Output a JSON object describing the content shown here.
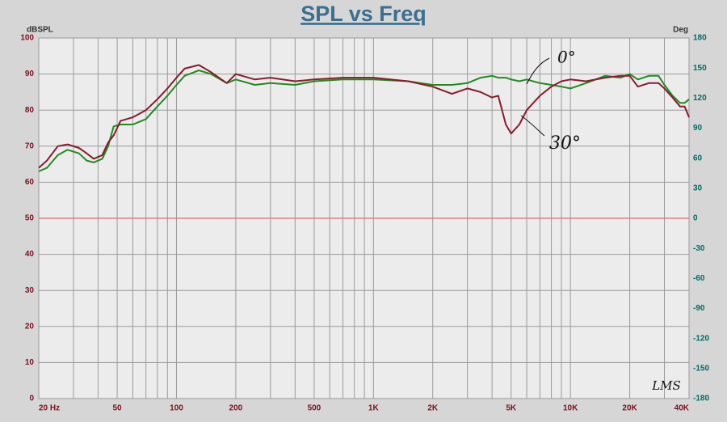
{
  "chart_data": {
    "type": "line",
    "title": "SPL vs Freq",
    "y_label": "dBSPL",
    "y2_label": "Deg",
    "log_x": true,
    "grid": true,
    "x": [
      20,
      22,
      25,
      28,
      32,
      35,
      38,
      42,
      45,
      48,
      52,
      60,
      70,
      80,
      90,
      100,
      110,
      130,
      150,
      180,
      200,
      250,
      300,
      400,
      500,
      700,
      1000,
      1500,
      2000,
      2500,
      3000,
      3500,
      4000,
      4300,
      4700,
      5000,
      5500,
      6000,
      7000,
      8000,
      9000,
      10000,
      12000,
      15000,
      18000,
      20000,
      22000,
      25000,
      28000,
      30000,
      33000,
      36000,
      38000,
      40000
    ],
    "series": [
      {
        "name": "0°",
        "color": "#1e8c1e",
        "values": [
          63,
          64,
          67.5,
          69,
          68,
          66,
          65.5,
          66.5,
          70,
          75.5,
          76,
          76,
          77.5,
          81,
          84,
          87,
          89.5,
          91,
          90,
          87.5,
          88.5,
          87,
          87.5,
          87,
          88,
          88.5,
          88.5,
          88,
          87,
          87,
          87.5,
          89,
          89.5,
          89,
          89,
          88.5,
          88,
          88.5,
          87.5,
          87,
          86.5,
          86,
          87.5,
          89.5,
          89,
          90,
          88.5,
          89.5,
          89.5,
          87,
          84,
          82,
          82,
          83
        ]
      },
      {
        "name": "30°",
        "color": "#8b1a2a",
        "values": [
          64,
          66,
          70,
          70.5,
          69.5,
          68,
          66.5,
          67.5,
          71,
          73,
          77,
          78,
          80,
          83,
          86,
          89,
          91.5,
          92.5,
          90.5,
          87.5,
          90,
          88.5,
          89,
          88,
          88.5,
          89,
          89,
          88,
          86.5,
          84.5,
          86,
          85,
          83.5,
          84,
          76,
          73.5,
          76,
          80,
          84,
          86.5,
          88,
          88.5,
          88,
          89,
          89.5,
          89.5,
          86.5,
          87.5,
          87.5,
          86,
          83.5,
          81,
          81,
          78
        ]
      }
    ],
    "xlim": [
      20,
      40000
    ],
    "xticks": [
      {
        "value": 20,
        "label": "20 Hz"
      },
      50,
      100,
      200,
      500,
      {
        "value": 1000,
        "label": "1K"
      },
      {
        "value": 2000,
        "label": "2K"
      },
      {
        "value": 5000,
        "label": "5K"
      },
      {
        "value": 10000,
        "label": "10K"
      },
      {
        "value": 20000,
        "label": "20K"
      },
      {
        "value": 40000,
        "label": "40K"
      }
    ],
    "xgrid": [
      20,
      30,
      40,
      50,
      60,
      70,
      80,
      90,
      100,
      200,
      300,
      400,
      500,
      600,
      700,
      800,
      900,
      1000,
      2000,
      3000,
      4000,
      5000,
      6000,
      7000,
      8000,
      9000,
      10000,
      20000,
      30000,
      40000
    ],
    "ylim": [
      0,
      100
    ],
    "yticks": [
      0,
      10,
      20,
      30,
      40,
      50,
      60,
      70,
      80,
      90,
      100
    ],
    "y2lim": [
      -180,
      180
    ],
    "y2ticks": [
      -180,
      -150,
      -120,
      -90,
      -60,
      -30,
      0,
      30,
      60,
      90,
      120,
      150,
      180
    ],
    "reference_line": {
      "value": 50,
      "color": "#e07070"
    },
    "annotations": [
      "LMS"
    ]
  }
}
